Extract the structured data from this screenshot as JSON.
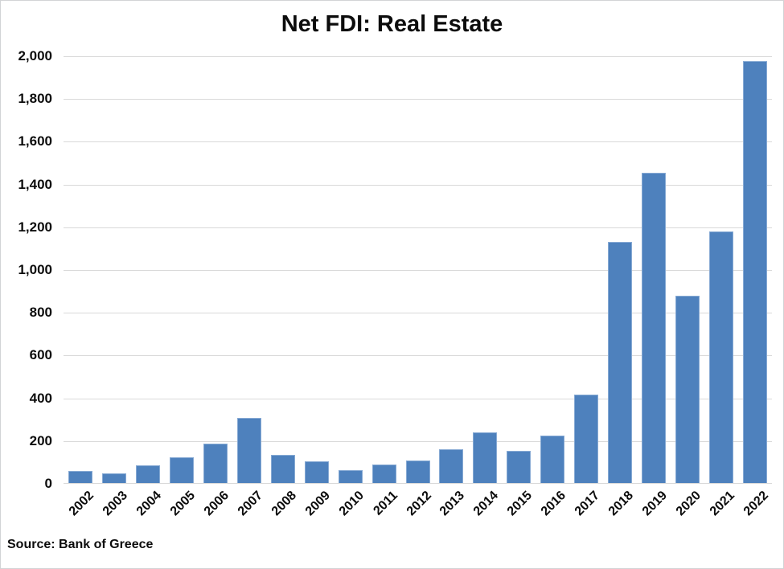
{
  "chart_data": {
    "type": "bar",
    "title": "Net FDI: Real Estate",
    "xlabel": "",
    "ylabel": "",
    "categories": [
      "2002",
      "2003",
      "2004",
      "2005",
      "2006",
      "2007",
      "2008",
      "2009",
      "2010",
      "2011",
      "2012",
      "2013",
      "2014",
      "2015",
      "2016",
      "2017",
      "2018",
      "2019",
      "2020",
      "2021",
      "2022"
    ],
    "values": [
      55,
      45,
      82,
      120,
      185,
      305,
      130,
      100,
      60,
      88,
      104,
      157,
      238,
      152,
      222,
      412,
      1127,
      1450,
      876,
      1175,
      1972
    ],
    "ylim": [
      0,
      2000
    ],
    "ytick_values": [
      0,
      200,
      400,
      600,
      800,
      1000,
      1200,
      1400,
      1600,
      1800,
      2000
    ],
    "ytick_labels": [
      "0",
      "200",
      "400",
      "600",
      "800",
      "1,000",
      "1,200",
      "1,400",
      "1,600",
      "1,800",
      "2,000"
    ],
    "grid": "horizontal",
    "legend": "none",
    "bar_color": "#4E81BD",
    "bar_border_color": "#87AAD4",
    "gridline_color": "#D9D9D9",
    "source_note": "Source: Bank of Greece"
  }
}
